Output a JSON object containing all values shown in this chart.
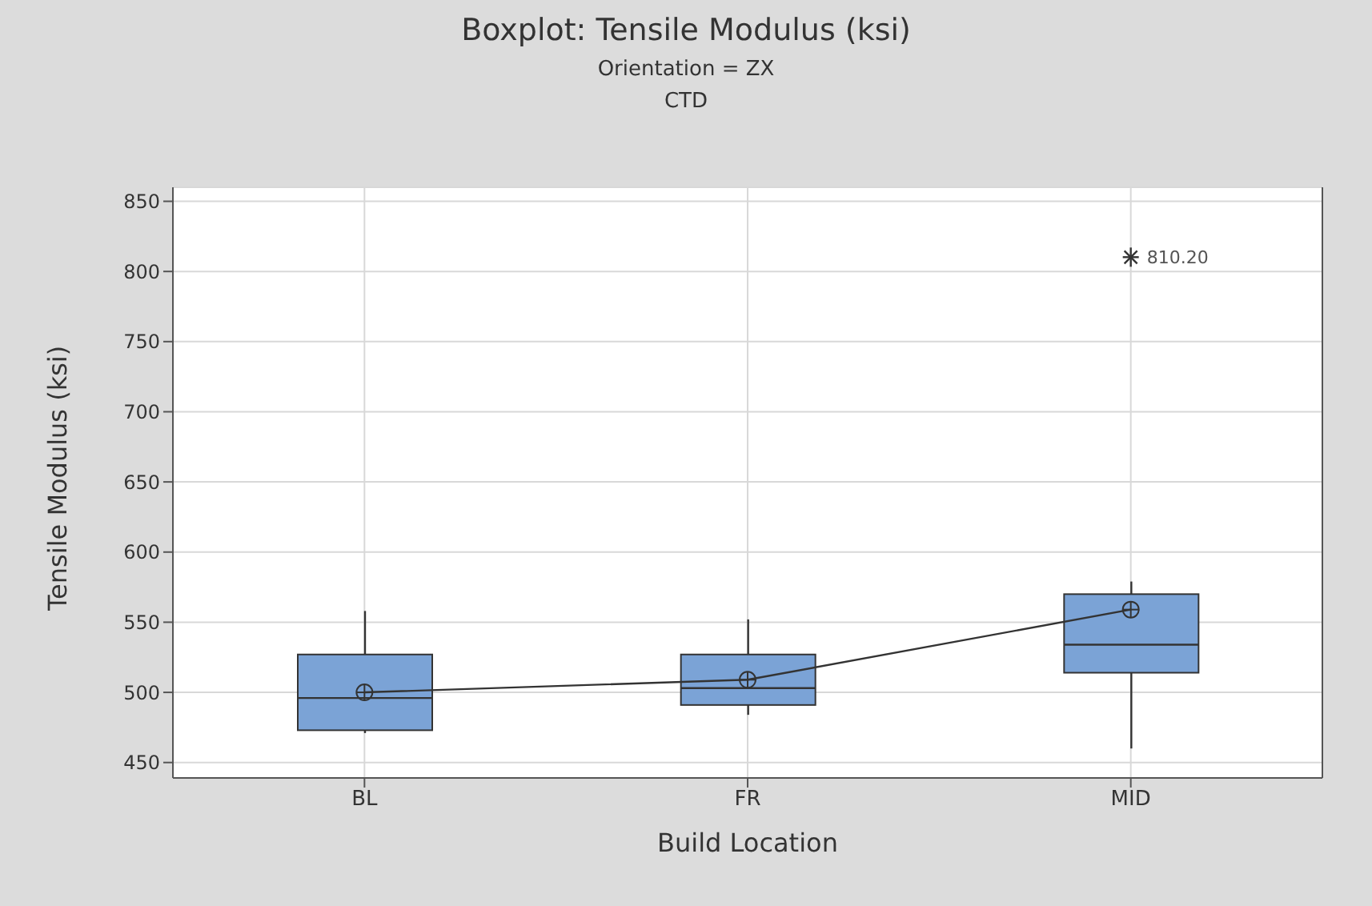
{
  "chart_data": {
    "type": "box",
    "title": "Boxplot: Tensile Modulus (ksi)",
    "subtitle": "Orientation = ZX\nCTD",
    "xlabel": "Build Location",
    "ylabel": "Tensile Modulus (ksi)",
    "categories": [
      "BL",
      "FR",
      "MID"
    ],
    "color": "#7ba3d6",
    "boxes": [
      {
        "low": 471,
        "q1": 473,
        "median": 496,
        "q3": 527,
        "high": 558,
        "mean": 500
      },
      {
        "low": 484,
        "q1": 491,
        "median": 503,
        "q3": 527,
        "high": 552,
        "mean": 509
      },
      {
        "low": 460,
        "q1": 514,
        "median": 534,
        "q3": 570,
        "high": 579,
        "mean": 559,
        "outliers": [
          810.2
        ]
      }
    ],
    "ylim": [
      439,
      860
    ],
    "yticks": [
      450,
      500,
      550,
      600,
      650,
      700,
      750,
      800,
      850
    ],
    "grid": true,
    "annotations": [
      "810.20"
    ],
    "series": [
      {
        "type": "line",
        "color": "#333333",
        "values": [
          500,
          509,
          559
        ]
      }
    ]
  }
}
